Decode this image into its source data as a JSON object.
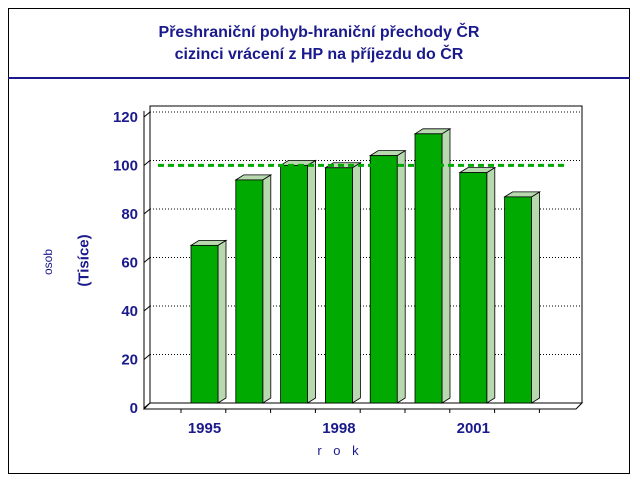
{
  "chart_data": {
    "type": "bar",
    "title_line1": "Přeshraniční pohyb-hraniční přechody ČR",
    "title_line2": "cizinci vrácení z HP na příjezdu do ČR",
    "ylabel_unit": "osob",
    "ylabel_scale": "(Tisíce)",
    "xlabel": "r o k",
    "x": [
      1995,
      1996,
      1997,
      1998,
      1999,
      2000,
      2001,
      2002
    ],
    "values": [
      65,
      92,
      98,
      97,
      102,
      111,
      95,
      85
    ],
    "xtick_labels": [
      "1995",
      "1998",
      "2001"
    ],
    "xtick_years": [
      1995,
      1998,
      2001
    ],
    "yticks": [
      0,
      20,
      40,
      60,
      80,
      100,
      120
    ],
    "ylim": [
      0,
      120
    ],
    "reference_line": 98,
    "grid": true,
    "colors": {
      "bar": "#00aa00",
      "bar_side": "#b8d8b0",
      "reference": "#00aa00",
      "text": "#1a1a8c"
    }
  }
}
